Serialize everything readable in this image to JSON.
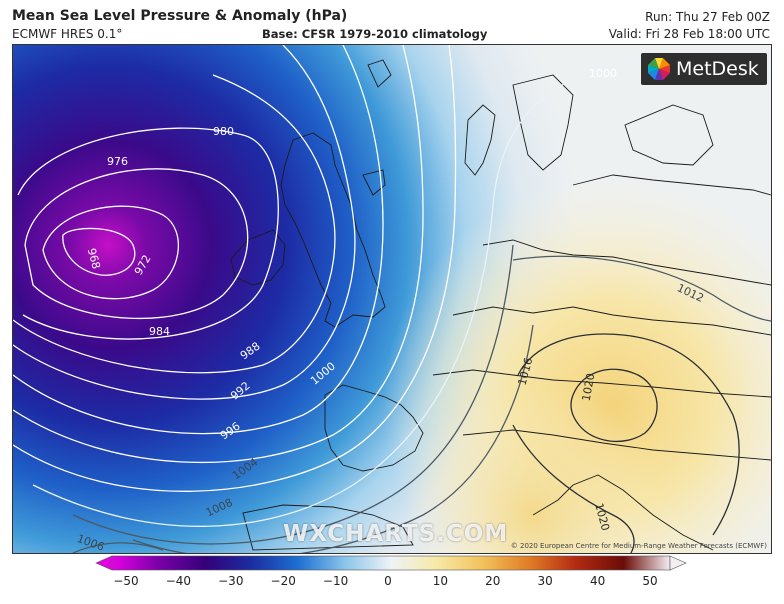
{
  "header": {
    "title": "Mean Sea Level Pressure & Anomaly (hPa)",
    "model": "ECMWF HRES 0.1°",
    "base": "Base: CFSR 1979-2010 climatology",
    "run": "Run: Thu 27 Feb 00Z",
    "valid": "Valid: Fri 28 Feb 18:00 UTC"
  },
  "logo": {
    "text": "MetDesk",
    "icon": "metdesk-burst-logo"
  },
  "watermark": "WXCHARTS.COM",
  "copyright": "© 2020 European Centre for Medium-Range Weather Forecasts (ECMWF)",
  "isobar_labels": [
    "1000",
    "980",
    "976",
    "972",
    "968",
    "984",
    "988",
    "992",
    "996",
    "1000",
    "1004",
    "1008",
    "1006",
    "1012",
    "1016",
    "1020",
    "1020"
  ],
  "colorbar": {
    "ticks": [
      "−50",
      "−40",
      "−30",
      "−20",
      "−10",
      "0",
      "10",
      "20",
      "30",
      "40",
      "50"
    ],
    "min": -50,
    "max": 50,
    "colors": [
      "#e600e6",
      "#7a00a8",
      "#34007a",
      "#1a2ea0",
      "#1d6fd1",
      "#8ac4ea",
      "#eef3f6",
      "#f7e9a6",
      "#f2c05a",
      "#e07a24",
      "#b22a12",
      "#6b0c08",
      "#f3eef2"
    ]
  }
}
